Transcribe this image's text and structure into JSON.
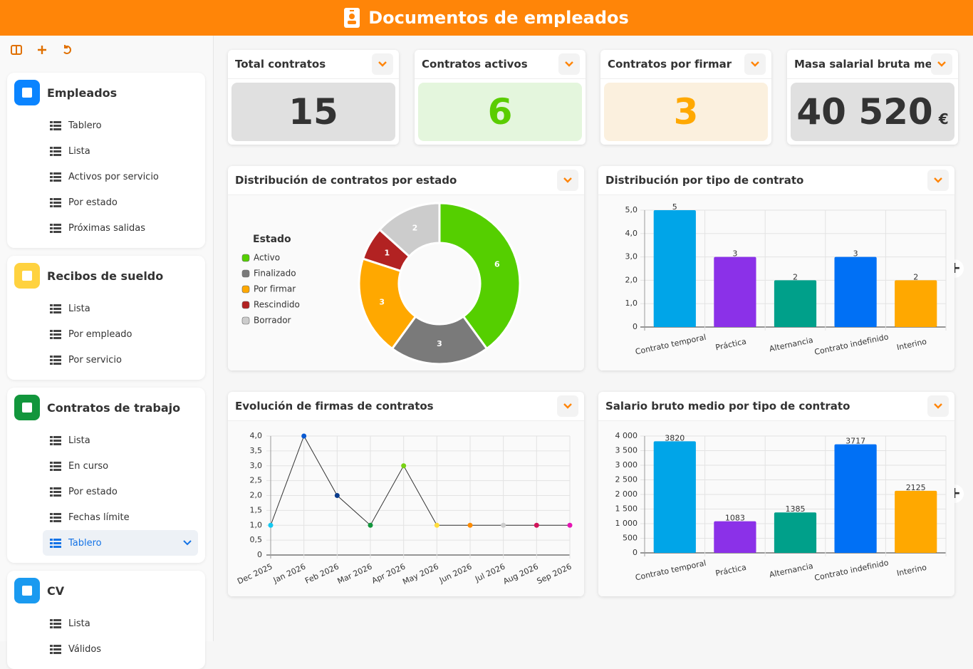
{
  "header": {
    "title": "Documentos de empleados"
  },
  "sidebar": {
    "sections": [
      {
        "title": "Empleados",
        "color": "#0a84ff",
        "items": [
          "Tablero",
          "Lista",
          "Activos por servicio",
          "Por estado",
          "Próximas salidas"
        ]
      },
      {
        "title": "Recibos de sueldo",
        "color": "#ffd23f",
        "items": [
          "Lista",
          "Por empleado",
          "Por servicio"
        ]
      },
      {
        "title": "Contratos de trabajo",
        "color": "#12963c",
        "items": [
          "Lista",
          "En curso",
          "Por estado",
          "Fechas límite",
          "Tablero"
        ],
        "active_item": 4
      },
      {
        "title": "CV",
        "color": "#1a9af0",
        "items": [
          "Lista",
          "Válidos"
        ]
      }
    ]
  },
  "kpis": [
    {
      "title": "Total contratos",
      "value": "15",
      "background": "#e0e0e0",
      "color": "#333333"
    },
    {
      "title": "Contratos activos",
      "value": "6",
      "background": "#e4f6dd",
      "color": "#5acd00"
    },
    {
      "title": "Contratos por firmar",
      "value": "3",
      "background": "#fbf0de",
      "color": "#ffa800"
    },
    {
      "title": "Masa salarial bruta mensual",
      "value": "40 520",
      "unit": "€",
      "background": "#e0e0e0",
      "color": "#333333"
    }
  ],
  "chart_data": [
    {
      "type": "donut",
      "title": "Distribución de contratos por estado",
      "legend_title": "Estado",
      "categories": [
        "Activo",
        "Finalizado",
        "Por firmar",
        "Rescindido",
        "Borrador"
      ],
      "values": [
        6,
        3,
        3,
        1,
        2
      ],
      "colors": [
        "#55cf00",
        "#7a7a7a",
        "#ffa800",
        "#b22222",
        "#cccccc"
      ]
    },
    {
      "type": "bar",
      "title": "Distribución por tipo de contrato",
      "categories": [
        "Contrato temporal",
        "Práctica",
        "Alternancia",
        "Contrato indefinido",
        "Interino"
      ],
      "values": [
        5,
        3,
        2,
        3,
        2
      ],
      "colors": [
        "#00a5e8",
        "#8b31e8",
        "#00a08a",
        "#0070f5",
        "#ffa800"
      ],
      "ylim": [
        0,
        5
      ],
      "yticks": [
        0,
        {
          "value": 1,
          "label": "1,0"
        },
        {
          "value": 2,
          "label": "2,0"
        },
        {
          "value": 3,
          "label": "3,0"
        },
        {
          "value": 4,
          "label": "4,0"
        },
        {
          "value": 5,
          "label": "5,0"
        }
      ],
      "grid": true
    },
    {
      "type": "line",
      "title": "Evolución de firmas de contratos",
      "categories": [
        "Dec 2025",
        "Jan 2026",
        "Feb 2026",
        "Mar 2026",
        "Apr 2026",
        "May 2026",
        "Jun 2026",
        "Jul 2026",
        "Aug 2026",
        "Sep 2026"
      ],
      "values": [
        1,
        4,
        2,
        1,
        3,
        1,
        1,
        1,
        1,
        1
      ],
      "color": "#333333",
      "point_colors": [
        "#14c8f0",
        "#0a5ad2",
        "#0a3c8c",
        "#12963c",
        "#78d214",
        "#ffdc3c",
        "#ff8c00",
        "#cccccc",
        "#d2145a",
        "#e614b4"
      ],
      "ylim": [
        0,
        4
      ],
      "yticks": [
        0,
        {
          "value": 0.5,
          "label": "0,5"
        },
        {
          "value": 1,
          "label": "1,0"
        },
        {
          "value": 1.5,
          "label": "1,5"
        },
        {
          "value": 2,
          "label": "2,0"
        },
        {
          "value": 2.5,
          "label": "2,5"
        },
        {
          "value": 3,
          "label": "3,0"
        },
        {
          "value": 3.5,
          "label": "3,5"
        },
        {
          "value": 4,
          "label": "4,0"
        }
      ],
      "grid": true
    },
    {
      "type": "bar",
      "title": "Salario bruto medio por tipo de contrato",
      "categories": [
        "Contrato temporal",
        "Práctica",
        "Alternancia",
        "Contrato indefinido",
        "Interino"
      ],
      "values": [
        3820,
        1083,
        1385,
        3717,
        2125
      ],
      "colors": [
        "#00a5e8",
        "#8b31e8",
        "#00a08a",
        "#0070f5",
        "#ffa800"
      ],
      "ylim": [
        0,
        4000
      ],
      "yticks": [
        0,
        500,
        {
          "value": 1000,
          "label": "1 000"
        },
        {
          "value": 1500,
          "label": "1 500"
        },
        {
          "value": 2000,
          "label": "2 000"
        },
        {
          "value": 2500,
          "label": "2 500"
        },
        {
          "value": 3000,
          "label": "3 000"
        },
        {
          "value": 3500,
          "label": "3 500"
        },
        {
          "value": 4000,
          "label": "4 000"
        }
      ],
      "grid": true
    }
  ]
}
